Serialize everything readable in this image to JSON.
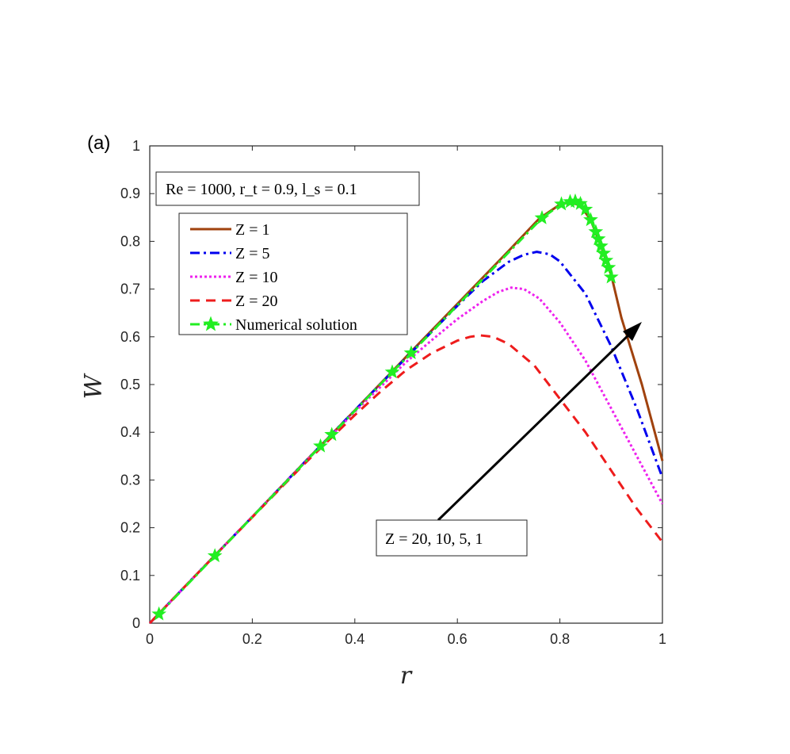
{
  "chart_data": {
    "type": "line",
    "panel_label": "(a)",
    "xlabel": "r",
    "ylabel": "W",
    "xlim": [
      0,
      1
    ],
    "ylim": [
      0,
      1
    ],
    "xticks": [
      "0",
      "0.2",
      "0.4",
      "0.6",
      "0.8",
      "1"
    ],
    "yticks": [
      "0",
      "0.1",
      "0.2",
      "0.3",
      "0.4",
      "0.5",
      "0.6",
      "0.7",
      "0.8",
      "0.9",
      "1"
    ],
    "grid": false,
    "legend_position": "top-left",
    "parameter_box": "Re = 1000, r_t = 0.9, l_s = 0.1",
    "arrow_annotation": "Z = 20, 10, 5, 1",
    "series": [
      {
        "name": "Z = 1",
        "color": "#a0420e",
        "style": "solid",
        "x": [
          0,
          0.1,
          0.2,
          0.3,
          0.4,
          0.5,
          0.6,
          0.7,
          0.76,
          0.8,
          0.82,
          0.84,
          0.86,
          0.88,
          0.9,
          0.92,
          0.94,
          0.96,
          0.98,
          1.0
        ],
        "y": [
          0,
          0.112,
          0.223,
          0.335,
          0.446,
          0.558,
          0.669,
          0.78,
          0.848,
          0.877,
          0.882,
          0.875,
          0.845,
          0.79,
          0.73,
          0.64,
          0.57,
          0.5,
          0.42,
          0.34
        ]
      },
      {
        "name": "Z = 5",
        "color": "#0000ee",
        "style": "dash-dot",
        "x": [
          0,
          0.1,
          0.2,
          0.3,
          0.4,
          0.5,
          0.6,
          0.65,
          0.7,
          0.73,
          0.755,
          0.78,
          0.8,
          0.85,
          0.9,
          0.95,
          1.0
        ],
        "y": [
          0,
          0.112,
          0.223,
          0.335,
          0.446,
          0.556,
          0.665,
          0.717,
          0.757,
          0.772,
          0.778,
          0.773,
          0.758,
          0.69,
          0.58,
          0.45,
          0.305
        ]
      },
      {
        "name": "Z = 10",
        "color": "#ee22ee",
        "style": "dotted",
        "x": [
          0,
          0.1,
          0.2,
          0.3,
          0.4,
          0.5,
          0.55,
          0.6,
          0.65,
          0.68,
          0.705,
          0.73,
          0.76,
          0.8,
          0.85,
          0.9,
          0.95,
          1.0
        ],
        "y": [
          0,
          0.112,
          0.223,
          0.334,
          0.443,
          0.547,
          0.593,
          0.637,
          0.675,
          0.694,
          0.703,
          0.7,
          0.68,
          0.63,
          0.55,
          0.45,
          0.35,
          0.25
        ]
      },
      {
        "name": "Z = 20",
        "color": "#ee1c1c",
        "style": "dashed",
        "x": [
          0,
          0.1,
          0.2,
          0.3,
          0.4,
          0.45,
          0.5,
          0.55,
          0.6,
          0.625,
          0.645,
          0.67,
          0.7,
          0.75,
          0.8,
          0.85,
          0.9,
          0.95,
          1.0
        ],
        "y": [
          0,
          0.112,
          0.222,
          0.332,
          0.436,
          0.485,
          0.53,
          0.566,
          0.592,
          0.6,
          0.603,
          0.6,
          0.585,
          0.54,
          0.47,
          0.4,
          0.32,
          0.24,
          0.17
        ]
      },
      {
        "name": "Numerical solution",
        "color": "#22ee22",
        "style": "dash-dot-star",
        "x": [
          0.018,
          0.127,
          0.333,
          0.355,
          0.473,
          0.51,
          0.765,
          0.803,
          0.82,
          0.83,
          0.84,
          0.85,
          0.86,
          0.87,
          0.875,
          0.88,
          0.885,
          0.89,
          0.895,
          0.9
        ],
        "y": [
          0.019,
          0.141,
          0.371,
          0.395,
          0.526,
          0.566,
          0.849,
          0.878,
          0.883,
          0.884,
          0.879,
          0.867,
          0.845,
          0.82,
          0.805,
          0.79,
          0.775,
          0.76,
          0.745,
          0.725
        ]
      }
    ]
  }
}
